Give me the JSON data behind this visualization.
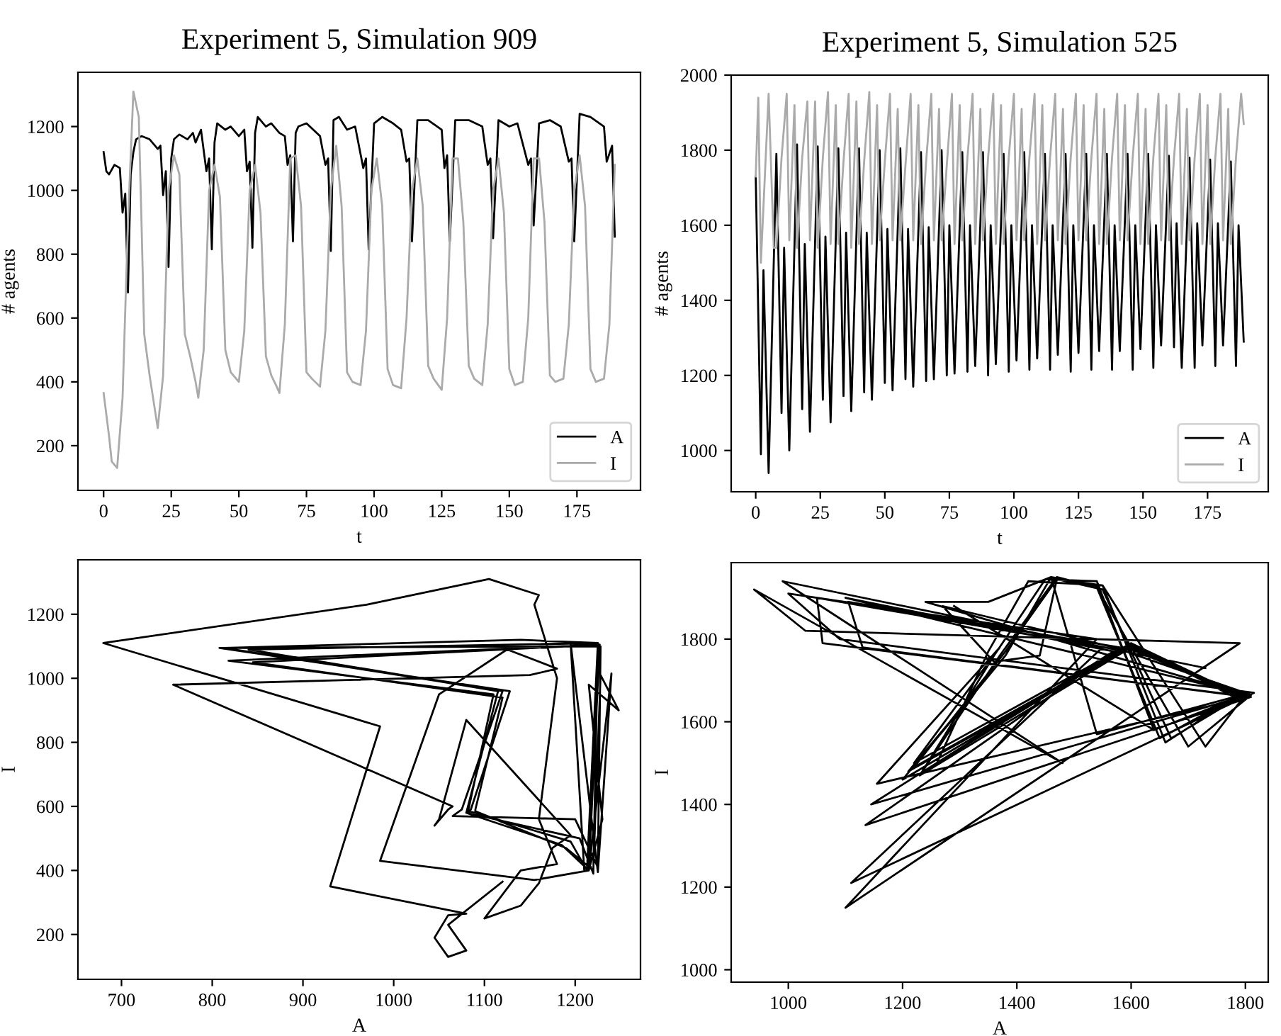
{
  "chart_data": [
    {
      "type": "line",
      "title": "Experiment 5, Simulation 909",
      "xlabel": "t",
      "ylabel": "# agents",
      "xlim": [
        -9.5,
        198.5
      ],
      "xticks": [
        0,
        25,
        50,
        75,
        100,
        125,
        150,
        175
      ],
      "ylim": [
        60,
        1370
      ],
      "yticks": [
        200,
        400,
        600,
        800,
        1000,
        1200
      ],
      "legend": "bottom right",
      "grid": false,
      "series": [
        {
          "name": "A",
          "color": "#000000",
          "x": [
            0,
            1,
            2,
            4,
            6,
            7,
            8,
            9,
            10,
            11,
            12,
            14,
            17,
            20,
            21,
            22,
            23,
            24,
            25,
            26,
            28,
            31,
            33,
            34,
            36,
            38,
            39,
            40,
            41,
            42,
            45,
            47,
            50,
            52,
            53,
            54,
            55,
            56,
            57,
            60,
            62,
            65,
            67,
            68,
            69,
            70,
            71,
            72,
            75,
            80,
            82,
            83,
            84,
            85,
            87,
            90,
            93,
            96,
            97,
            98,
            100,
            103,
            107,
            110,
            112,
            113,
            114,
            116,
            120,
            125,
            126,
            127,
            128,
            130,
            135,
            140,
            142,
            143,
            144,
            146,
            150,
            153,
            157,
            158,
            159,
            161,
            165,
            169,
            172,
            173,
            174,
            176,
            180,
            185,
            186,
            188,
            189
          ],
          "values": [
            1120,
            1060,
            1050,
            1080,
            1070,
            930,
            990,
            680,
            1050,
            1120,
            1160,
            1170,
            1160,
            1130,
            1140,
            985,
            1060,
            760,
            1100,
            1160,
            1175,
            1160,
            1180,
            1150,
            1190,
            1060,
            1100,
            815,
            1150,
            1210,
            1190,
            1200,
            1170,
            1190,
            1060,
            1090,
            820,
            1180,
            1230,
            1200,
            1210,
            1180,
            1170,
            1080,
            1110,
            840,
            1180,
            1200,
            1210,
            1170,
            1080,
            1100,
            810,
            1220,
            1230,
            1190,
            1200,
            1070,
            1100,
            815,
            1210,
            1230,
            1210,
            1190,
            1090,
            1100,
            840,
            1220,
            1220,
            1190,
            1070,
            1110,
            840,
            1220,
            1220,
            1200,
            1080,
            1100,
            850,
            1220,
            1200,
            1210,
            1080,
            1100,
            890,
            1210,
            1220,
            1200,
            1090,
            1100,
            840,
            1240,
            1230,
            1200,
            1090,
            1140,
            855
          ]
        },
        {
          "name": "I",
          "color": "#aaaaaa",
          "x": [
            0,
            2,
            3,
            5,
            7,
            9,
            11,
            13,
            14,
            15,
            17,
            19,
            20,
            22,
            24,
            26,
            28,
            30,
            32,
            34,
            35,
            37,
            39,
            41,
            43,
            45,
            47,
            49,
            50,
            52,
            54,
            56,
            58,
            60,
            62,
            64,
            65,
            67,
            69,
            71,
            73,
            75,
            77,
            80,
            82,
            84,
            86,
            88,
            90,
            92,
            95,
            97,
            99,
            101,
            103,
            105,
            107,
            110,
            112,
            114,
            116,
            118,
            120,
            122,
            125,
            127,
            129,
            131,
            133,
            135,
            137,
            140,
            142,
            144,
            146,
            148,
            150,
            152,
            155,
            157,
            159,
            161,
            163,
            165,
            167,
            170,
            172,
            174,
            176,
            178,
            180,
            182,
            185,
            187,
            189
          ],
          "values": [
            365,
            230,
            150,
            130,
            350,
            900,
            1310,
            1230,
            900,
            550,
            420,
            310,
            255,
            420,
            1000,
            1110,
            1050,
            550,
            480,
            400,
            350,
            500,
            1000,
            1080,
            980,
            500,
            430,
            410,
            400,
            560,
            1000,
            1080,
            930,
            480,
            420,
            385,
            365,
            580,
            1100,
            1110,
            950,
            430,
            410,
            385,
            560,
            1000,
            1140,
            950,
            430,
            400,
            390,
            560,
            1000,
            1100,
            950,
            440,
            390,
            380,
            600,
            1000,
            1100,
            950,
            450,
            410,
            375,
            600,
            1100,
            1100,
            900,
            450,
            410,
            390,
            580,
            1000,
            1100,
            930,
            440,
            390,
            400,
            600,
            1100,
            1100,
            900,
            420,
            400,
            410,
            580,
            1000,
            1110,
            950,
            440,
            400,
            410,
            580,
            1080
          ]
        }
      ]
    },
    {
      "type": "line",
      "title": "Experiment 5, Simulation 525",
      "xlabel": "t",
      "ylabel": "# agents",
      "xlim": [
        -9.5,
        198.5
      ],
      "xticks": [
        0,
        25,
        50,
        75,
        100,
        125,
        150,
        175
      ],
      "ylim": [
        890,
        2000
      ],
      "yticks": [
        1000,
        1200,
        1400,
        1600,
        1800,
        2000
      ],
      "legend": "bottom right",
      "grid": false,
      "series": [
        {
          "name": "A",
          "color": "#000000",
          "x": [
            0,
            2,
            3,
            5,
            8,
            10,
            11,
            13,
            16,
            18,
            19,
            21,
            24,
            26,
            27,
            29,
            32,
            34,
            35,
            37,
            40,
            42,
            43,
            45,
            48,
            50,
            51,
            53,
            56,
            58,
            59,
            61,
            64,
            66,
            67,
            69,
            72,
            74,
            75,
            77,
            80,
            82,
            83,
            85,
            88,
            90,
            91,
            93,
            96,
            98,
            99,
            101,
            104,
            106,
            107,
            109,
            112,
            114,
            115,
            117,
            120,
            122,
            123,
            125,
            128,
            130,
            131,
            133,
            136,
            138,
            139,
            141,
            144,
            146,
            147,
            149,
            152,
            154,
            155,
            157,
            160,
            162,
            163,
            165,
            168,
            170,
            171,
            173,
            176,
            178,
            179,
            181,
            184,
            186,
            187,
            189
          ],
          "values": [
            1730,
            990,
            1480,
            940,
            1790,
            1100,
            1540,
            1000,
            1815,
            1110,
            1550,
            1050,
            1810,
            1135,
            1570,
            1075,
            1805,
            1145,
            1580,
            1105,
            1805,
            1155,
            1580,
            1135,
            1800,
            1180,
            1590,
            1160,
            1805,
            1190,
            1590,
            1170,
            1795,
            1185,
            1595,
            1190,
            1800,
            1200,
            1600,
            1205,
            1795,
            1210,
            1600,
            1225,
            1795,
            1200,
            1600,
            1230,
            1790,
            1210,
            1600,
            1240,
            1795,
            1215,
            1600,
            1245,
            1790,
            1215,
            1600,
            1255,
            1790,
            1210,
            1600,
            1260,
            1790,
            1215,
            1600,
            1265,
            1790,
            1215,
            1600,
            1265,
            1790,
            1215,
            1600,
            1270,
            1790,
            1220,
            1600,
            1280,
            1785,
            1275,
            1605,
            1220,
            1780,
            1220,
            1605,
            1280,
            1775,
            1225,
            1605,
            1280,
            1770,
            1225,
            1600,
            1290
          ]
        },
        {
          "name": "I",
          "color": "#aaaaaa",
          "x": [
            0,
            1,
            2,
            4,
            5,
            7,
            8,
            10,
            12,
            13,
            15,
            16,
            18,
            20,
            21,
            23,
            24,
            26,
            28,
            29,
            31,
            32,
            34,
            36,
            37,
            39,
            40,
            42,
            44,
            45,
            47,
            48,
            50,
            52,
            53,
            55,
            56,
            58,
            60,
            61,
            63,
            64,
            66,
            68,
            69,
            71,
            72,
            74,
            76,
            77,
            79,
            80,
            82,
            84,
            85,
            87,
            88,
            90,
            92,
            93,
            95,
            96,
            98,
            100,
            101,
            103,
            104,
            106,
            108,
            109,
            111,
            112,
            114,
            116,
            117,
            119,
            120,
            122,
            124,
            125,
            127,
            128,
            130,
            132,
            133,
            135,
            136,
            138,
            140,
            141,
            143,
            144,
            146,
            148,
            149,
            151,
            152,
            154,
            156,
            157,
            159,
            160,
            162,
            164,
            165,
            167,
            168,
            170,
            172,
            173,
            175,
            176,
            178,
            180,
            181,
            183,
            184,
            186,
            188,
            189
          ],
          "values": [
            1730,
            1940,
            1500,
            1800,
            1950,
            1540,
            1540,
            1780,
            1950,
            1560,
            1920,
            1540,
            1780,
            1930,
            1560,
            1930,
            1540,
            1780,
            1955,
            1550,
            1920,
            1550,
            1770,
            1950,
            1540,
            1930,
            1550,
            1770,
            1955,
            1550,
            1920,
            1560,
            1770,
            1950,
            1560,
            1910,
            1560,
            1760,
            1950,
            1560,
            1920,
            1550,
            1770,
            1950,
            1560,
            1910,
            1560,
            1760,
            1950,
            1550,
            1920,
            1560,
            1780,
            1950,
            1550,
            1910,
            1560,
            1780,
            1950,
            1550,
            1920,
            1550,
            1780,
            1950,
            1560,
            1910,
            1560,
            1780,
            1950,
            1550,
            1920,
            1560,
            1780,
            1950,
            1560,
            1910,
            1550,
            1780,
            1950,
            1560,
            1920,
            1560,
            1780,
            1950,
            1550,
            1910,
            1550,
            1780,
            1950,
            1560,
            1920,
            1560,
            1780,
            1950,
            1550,
            1910,
            1550,
            1780,
            1950,
            1560,
            1920,
            1560,
            1780,
            1950,
            1550,
            1910,
            1560,
            1780,
            1950,
            1550,
            1920,
            1550,
            1780,
            1950,
            1560,
            1910,
            1550,
            1780,
            1950,
            1870
          ]
        }
      ]
    },
    {
      "type": "line",
      "xlabel": "A",
      "ylabel": "I",
      "xlim": [
        652,
        1272
      ],
      "xticks": [
        700,
        800,
        900,
        1000,
        1100,
        1200
      ],
      "ylim": [
        60,
        1370
      ],
      "yticks": [
        200,
        400,
        600,
        800,
        1000,
        1200
      ],
      "legend": false,
      "grid": false,
      "series": [
        {
          "color": "#000000",
          "x": [
            1120,
            1060,
            1080,
            1060,
            1045,
            1060,
            1080,
            930,
            985,
            680,
            970,
            1105,
            1160,
            1155,
            1180,
            1160,
            1180,
            1140,
            1100,
            1140,
            1160,
            1175,
            1195,
            1080,
            1050,
            1045,
            1060,
            1065,
            757,
            1150,
            1180,
            1125,
            1050,
            985,
            1155,
            1215,
            1225,
            1140,
            813,
            1120,
            1075,
            1065,
            1200,
            1225,
            1228,
            808,
            1128,
            1085,
            1080,
            1205,
            1220,
            1225,
            818,
            1110,
            1082,
            1090,
            1195,
            1213,
            1225,
            840,
            1115,
            1080,
            1085,
            1185,
            1215,
            1227,
            845,
            1120,
            1090,
            1090,
            1190,
            1220,
            1228,
            1248,
            1215,
            1230,
            1215,
            1240,
            1225,
            1195,
            1210
          ],
          "values": [
            365,
            230,
            150,
            130,
            190,
            260,
            265,
            350,
            850,
            1110,
            1230,
            1310,
            1260,
            1230,
            1000,
            560,
            420,
            400,
            250,
            290,
            360,
            470,
            510,
            870,
            560,
            540,
            590,
            600,
            980,
            1010,
            1030,
            1090,
            950,
            430,
            370,
            400,
            1110,
            1120,
            1095,
            960,
            590,
            570,
            560,
            410,
            1100,
            1095,
            960,
            590,
            580,
            500,
            390,
            1105,
            1055,
            950,
            585,
            580,
            490,
            400,
            1110,
            1090,
            960,
            580,
            575,
            480,
            400,
            1105,
            1050,
            940,
            590,
            585,
            470,
            400,
            1010,
            900,
            980,
            560,
            400,
            1015,
            395,
            1110,
            400
          ]
        }
      ]
    },
    {
      "type": "line",
      "xlabel": "A",
      "ylabel": "I",
      "xlim": [
        900,
        1840
      ],
      "xticks": [
        1000,
        1200,
        1400,
        1600,
        1800
      ],
      "ylim": [
        970,
        1985
      ],
      "yticks": [
        1000,
        1200,
        1400,
        1600,
        1800
      ],
      "legend": false,
      "grid": false,
      "series": [
        {
          "color": "#000000",
          "x": [
            1730,
            990,
            1480,
            940,
            1030,
            1790,
            1100,
            1540,
            1000,
            1090,
            1815,
            1110,
            1550,
            1050,
            1060,
            1810,
            1135,
            1570,
            1100,
            1805,
            1145,
            1580,
            1105,
            1130,
            1805,
            1155,
            1370,
            1220,
            1600,
            1780,
            1540,
            1460,
            1350,
            1240,
            1800,
            1640,
            1540,
            1450,
            1360,
            1230,
            1600,
            1795,
            1650,
            1540,
            1460,
            1380,
            1210,
            1600,
            1790,
            1660,
            1550,
            1470,
            1380,
            1220,
            1600,
            1790,
            1670,
            1550,
            1470,
            1440,
            1360,
            1270,
            1570,
            1810,
            1700,
            1540,
            1460,
            1380,
            1200,
            1590,
            1800,
            1730,
            1550,
            1420,
            1350,
            1260,
            1600,
            1790,
            1650,
            1540,
            1470,
            1370,
            1230,
            1600,
            1790,
            1640,
            1290
          ],
          "values": [
            1730,
            1940,
            1500,
            1920,
            1820,
            1790,
            1150,
            1800,
            1910,
            1800,
            1670,
            1210,
            1780,
            1900,
            1790,
            1660,
            1350,
            1770,
            1900,
            1665,
            1400,
            1780,
            1890,
            1780,
            1660,
            1450,
            1780,
            1500,
            1790,
            1660,
            1570,
            1950,
            1890,
            1890,
            1665,
            1580,
            1940,
            1945,
            1760,
            1470,
            1780,
            1665,
            1560,
            1930,
            1950,
            1760,
            1480,
            1780,
            1665,
            1550,
            1930,
            1945,
            1770,
            1490,
            1785,
            1660,
            1560,
            1920,
            1945,
            1760,
            1745,
            1880,
            1780,
            1665,
            1540,
            1925,
            1950,
            1760,
            1460,
            1780,
            1665,
            1540,
            1930,
            1940,
            1770,
            1500,
            1790,
            1665,
            1560,
            1925,
            1950,
            1760,
            1470,
            1780,
            1660,
            1580,
            1880
          ]
        }
      ]
    }
  ]
}
